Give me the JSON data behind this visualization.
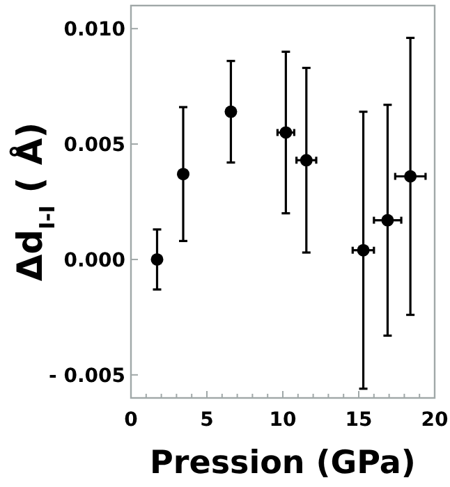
{
  "chart_data": {
    "type": "scatter",
    "xlabel": "Pression (GPa)",
    "ylabel": "Δd$_{I-I}$ ( Å)",
    "x": [
      1.72,
      3.44,
      6.58,
      10.2,
      11.55,
      15.3,
      16.9,
      18.4
    ],
    "values": [
      0.0,
      0.0037,
      0.0064,
      0.0055,
      0.0043,
      0.0004,
      0.0017,
      0.0036
    ],
    "errors": [
      [
        -0.0013,
        0.0013
      ],
      [
        0.0008,
        0.0066
      ],
      [
        0.0042,
        0.0086
      ],
      [
        0.002,
        0.009
      ],
      [
        0.0003,
        0.0083
      ],
      [
        -0.0056,
        0.0064
      ],
      [
        -0.0033,
        0.0067
      ],
      [
        -0.0024,
        0.0096
      ]
    ],
    "xerrors": [
      null,
      null,
      null,
      [
        9.65,
        10.75
      ],
      [
        10.9,
        12.2
      ],
      [
        14.6,
        16.0
      ],
      [
        16.0,
        17.8
      ],
      [
        17.4,
        19.4
      ]
    ],
    "color": "#000000",
    "marker": "circle",
    "xlim": [
      0,
      20
    ],
    "xticks": [
      0,
      {
        "value": 1,
        "label": null
      },
      {
        "value": 2,
        "label": null
      },
      {
        "value": 3,
        "label": null
      },
      {
        "value": 4,
        "label": null
      },
      5,
      {
        "value": 6,
        "label": null
      },
      {
        "value": 7,
        "label": null
      },
      {
        "value": 8,
        "label": null
      },
      {
        "value": 9,
        "label": null
      },
      10,
      {
        "value": 11,
        "label": null
      },
      {
        "value": 12,
        "label": null
      },
      {
        "value": 13,
        "label": null
      },
      {
        "value": 14,
        "label": null
      },
      15,
      {
        "value": 16,
        "label": null
      },
      {
        "value": 17,
        "label": null
      },
      {
        "value": 18,
        "label": null
      },
      {
        "value": 19,
        "label": null
      },
      20
    ],
    "ylim": [
      -0.006,
      0.011
    ],
    "yticks": [
      {
        "value": -0.005,
        "label": "- 0.005"
      },
      {
        "value": 0,
        "label": "0.000"
      },
      {
        "value": 0.005,
        "label": "0.005"
      },
      {
        "value": 0.01,
        "label": "0.010"
      }
    ],
    "grid": false
  }
}
